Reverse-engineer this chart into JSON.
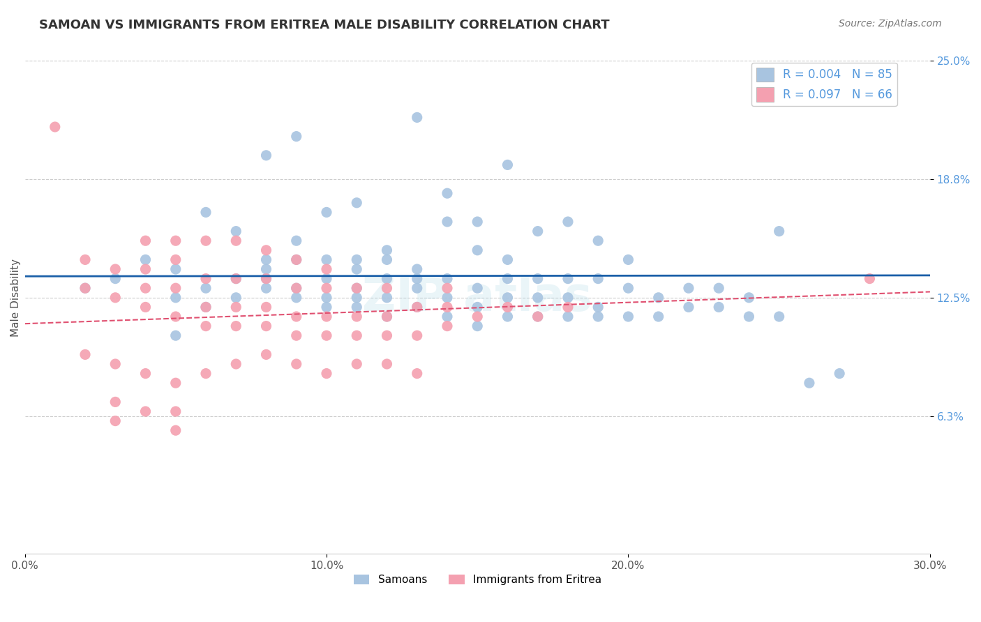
{
  "title": "SAMOAN VS IMMIGRANTS FROM ERITREA MALE DISABILITY CORRELATION CHART",
  "source": "Source: ZipAtlas.com",
  "xlabel_bottom": "",
  "ylabel": "Male Disability",
  "x_min": 0.0,
  "x_max": 0.3,
  "y_min": 0.0,
  "y_max": 0.25,
  "y_ticks": [
    0.0625,
    0.125,
    0.1875,
    0.25
  ],
  "y_tick_labels": [
    "6.3%",
    "12.5%",
    "18.8%",
    "25.0%"
  ],
  "x_ticks": [
    0.0,
    0.1,
    0.2,
    0.3
  ],
  "x_tick_labels": [
    "0.0%",
    "10.0%",
    "20.0%",
    "30.0%"
  ],
  "legend_labels_bottom": [
    "Samoans",
    "Immigrants from Eritrea"
  ],
  "r_blue": 0.004,
  "n_blue": 85,
  "r_pink": 0.097,
  "n_pink": 66,
  "blue_color": "#a8c4e0",
  "pink_color": "#f4a0b0",
  "blue_line_color": "#1a5fa8",
  "pink_line_color": "#e05070",
  "watermark": "ZIPAtlas",
  "blue_dots_x": [
    0.02,
    0.03,
    0.04,
    0.05,
    0.05,
    0.06,
    0.06,
    0.07,
    0.07,
    0.08,
    0.08,
    0.08,
    0.09,
    0.09,
    0.09,
    0.1,
    0.1,
    0.1,
    0.1,
    0.11,
    0.11,
    0.11,
    0.11,
    0.12,
    0.12,
    0.12,
    0.12,
    0.13,
    0.13,
    0.13,
    0.14,
    0.14,
    0.14,
    0.15,
    0.15,
    0.15,
    0.16,
    0.16,
    0.16,
    0.17,
    0.17,
    0.17,
    0.18,
    0.18,
    0.18,
    0.19,
    0.19,
    0.19,
    0.2,
    0.2,
    0.21,
    0.21,
    0.22,
    0.23,
    0.24,
    0.25,
    0.13,
    0.14,
    0.15,
    0.16,
    0.06,
    0.07,
    0.08,
    0.09,
    0.25,
    0.26,
    0.27,
    0.08,
    0.09,
    0.17,
    0.18,
    0.19,
    0.1,
    0.11,
    0.05,
    0.12,
    0.22,
    0.2,
    0.16,
    0.14,
    0.15,
    0.13,
    0.11,
    0.24,
    0.23
  ],
  "blue_dots_y": [
    0.13,
    0.135,
    0.145,
    0.125,
    0.14,
    0.12,
    0.13,
    0.125,
    0.135,
    0.13,
    0.135,
    0.14,
    0.125,
    0.13,
    0.145,
    0.12,
    0.125,
    0.135,
    0.145,
    0.12,
    0.125,
    0.13,
    0.14,
    0.115,
    0.125,
    0.135,
    0.145,
    0.12,
    0.13,
    0.14,
    0.115,
    0.125,
    0.135,
    0.11,
    0.12,
    0.13,
    0.115,
    0.125,
    0.135,
    0.115,
    0.125,
    0.135,
    0.115,
    0.125,
    0.135,
    0.115,
    0.12,
    0.135,
    0.115,
    0.13,
    0.115,
    0.125,
    0.12,
    0.12,
    0.115,
    0.115,
    0.22,
    0.18,
    0.165,
    0.195,
    0.17,
    0.16,
    0.2,
    0.21,
    0.16,
    0.08,
    0.085,
    0.145,
    0.155,
    0.16,
    0.165,
    0.155,
    0.17,
    0.175,
    0.105,
    0.15,
    0.13,
    0.145,
    0.145,
    0.165,
    0.15,
    0.135,
    0.145,
    0.125,
    0.13
  ],
  "pink_dots_x": [
    0.01,
    0.02,
    0.02,
    0.03,
    0.03,
    0.04,
    0.04,
    0.04,
    0.05,
    0.05,
    0.05,
    0.06,
    0.06,
    0.06,
    0.07,
    0.07,
    0.07,
    0.08,
    0.08,
    0.08,
    0.09,
    0.09,
    0.09,
    0.1,
    0.1,
    0.1,
    0.11,
    0.11,
    0.11,
    0.12,
    0.12,
    0.12,
    0.13,
    0.13,
    0.14,
    0.14,
    0.15,
    0.16,
    0.17,
    0.18,
    0.02,
    0.03,
    0.04,
    0.05,
    0.06,
    0.07,
    0.08,
    0.09,
    0.1,
    0.11,
    0.12,
    0.13,
    0.04,
    0.05,
    0.06,
    0.07,
    0.08,
    0.14,
    0.09,
    0.1,
    0.03,
    0.04,
    0.05,
    0.28,
    0.03,
    0.05
  ],
  "pink_dots_y": [
    0.215,
    0.13,
    0.145,
    0.125,
    0.14,
    0.12,
    0.13,
    0.14,
    0.115,
    0.13,
    0.145,
    0.11,
    0.12,
    0.135,
    0.11,
    0.12,
    0.135,
    0.11,
    0.12,
    0.135,
    0.105,
    0.115,
    0.13,
    0.105,
    0.115,
    0.13,
    0.105,
    0.115,
    0.13,
    0.105,
    0.115,
    0.13,
    0.105,
    0.12,
    0.11,
    0.12,
    0.115,
    0.12,
    0.115,
    0.12,
    0.095,
    0.09,
    0.085,
    0.08,
    0.085,
    0.09,
    0.095,
    0.09,
    0.085,
    0.09,
    0.09,
    0.085,
    0.155,
    0.155,
    0.155,
    0.155,
    0.15,
    0.13,
    0.145,
    0.14,
    0.07,
    0.065,
    0.065,
    0.135,
    0.06,
    0.055
  ]
}
